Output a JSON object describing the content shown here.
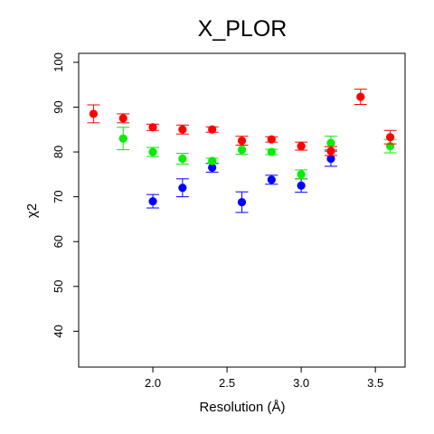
{
  "chart_data": {
    "type": "scatter",
    "title": "X_PLOR",
    "xlabel": "Resolution (Å)",
    "ylabel": "χ2",
    "xlim": [
      1.5,
      3.7
    ],
    "ylim": [
      32,
      102
    ],
    "xticks": [
      2.0,
      2.5,
      3.0,
      3.5
    ],
    "xtick_labels": [
      "2.0",
      "2.5",
      "3.0",
      "3.5"
    ],
    "yticks": [
      40,
      50,
      60,
      70,
      80,
      90,
      100
    ],
    "ytick_labels": [
      "40",
      "50",
      "60",
      "70",
      "80",
      "90",
      "100"
    ],
    "grid": false,
    "legend": "none",
    "series": [
      {
        "color": "#ff0000",
        "points": [
          {
            "x": 1.6,
            "y": 88.5,
            "lo": 86.5,
            "hi": 90.5
          },
          {
            "x": 1.8,
            "y": 87.5,
            "lo": 86.5,
            "hi": 88.5
          },
          {
            "x": 2.0,
            "y": 85.5,
            "lo": 84.8,
            "hi": 86.2
          },
          {
            "x": 2.2,
            "y": 85.0,
            "lo": 84.0,
            "hi": 86.0
          },
          {
            "x": 2.4,
            "y": 85.0,
            "lo": 84.4,
            "hi": 85.6
          },
          {
            "x": 2.6,
            "y": 82.5,
            "lo": 81.5,
            "hi": 83.5
          },
          {
            "x": 2.8,
            "y": 82.8,
            "lo": 82.2,
            "hi": 83.4
          },
          {
            "x": 3.0,
            "y": 81.3,
            "lo": 80.4,
            "hi": 82.2
          },
          {
            "x": 3.2,
            "y": 80.2,
            "lo": 79.2,
            "hi": 81.2
          },
          {
            "x": 3.4,
            "y": 92.3,
            "lo": 90.6,
            "hi": 94.0
          },
          {
            "x": 3.6,
            "y": 83.3,
            "lo": 81.8,
            "hi": 84.8
          }
        ]
      },
      {
        "color": "#00ee00",
        "points": [
          {
            "x": 1.8,
            "y": 83.0,
            "lo": 80.5,
            "hi": 85.5
          },
          {
            "x": 2.0,
            "y": 80.0,
            "lo": 79.0,
            "hi": 81.0
          },
          {
            "x": 2.2,
            "y": 78.5,
            "lo": 77.3,
            "hi": 79.7
          },
          {
            "x": 2.4,
            "y": 78.0,
            "lo": 77.4,
            "hi": 78.6
          },
          {
            "x": 2.6,
            "y": 80.5,
            "lo": 79.5,
            "hi": 81.5
          },
          {
            "x": 2.8,
            "y": 80.0,
            "lo": 79.4,
            "hi": 80.6
          },
          {
            "x": 3.0,
            "y": 75.0,
            "lo": 74.0,
            "hi": 76.0
          },
          {
            "x": 3.2,
            "y": 82.0,
            "lo": 80.5,
            "hi": 83.5
          },
          {
            "x": 3.6,
            "y": 81.3,
            "lo": 79.8,
            "hi": 82.8
          }
        ]
      },
      {
        "color": "#0000ff",
        "points": [
          {
            "x": 2.0,
            "y": 69.0,
            "lo": 67.5,
            "hi": 70.5
          },
          {
            "x": 2.2,
            "y": 72.0,
            "lo": 70.0,
            "hi": 74.0
          },
          {
            "x": 2.4,
            "y": 76.5,
            "lo": 75.5,
            "hi": 77.5
          },
          {
            "x": 2.6,
            "y": 68.8,
            "lo": 66.5,
            "hi": 71.1
          },
          {
            "x": 2.8,
            "y": 73.8,
            "lo": 72.8,
            "hi": 74.8
          },
          {
            "x": 3.0,
            "y": 72.5,
            "lo": 71.0,
            "hi": 74.0
          },
          {
            "x": 3.2,
            "y": 78.5,
            "lo": 76.8,
            "hi": 80.2
          }
        ]
      }
    ]
  }
}
